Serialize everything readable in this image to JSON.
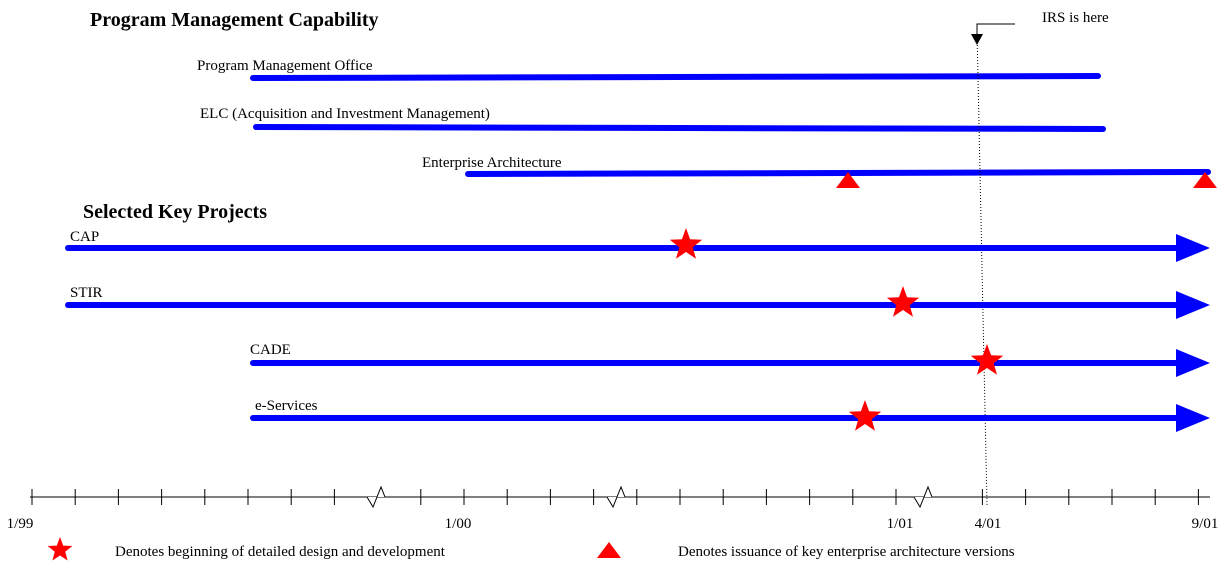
{
  "headings": {
    "capability": "Program Management Capability",
    "projects": "Selected Key Projects"
  },
  "capabilities": [
    {
      "label": "Program Management Office"
    },
    {
      "label": "ELC (Acquisition and Investment Management)"
    },
    {
      "label": "Enterprise Architecture"
    }
  ],
  "projects": [
    {
      "label": "CAP"
    },
    {
      "label": "STIR"
    },
    {
      "label": "CADE"
    },
    {
      "label": "e-Services"
    }
  ],
  "marker": {
    "label": "IRS is here"
  },
  "axis": {
    "labels": [
      "1/99",
      "1/00",
      "1/01",
      "4/01",
      "9/01"
    ]
  },
  "legend": {
    "star": "Denotes beginning of detailed design and development",
    "triangle": "Denotes issuance of key enterprise architecture versions"
  }
}
